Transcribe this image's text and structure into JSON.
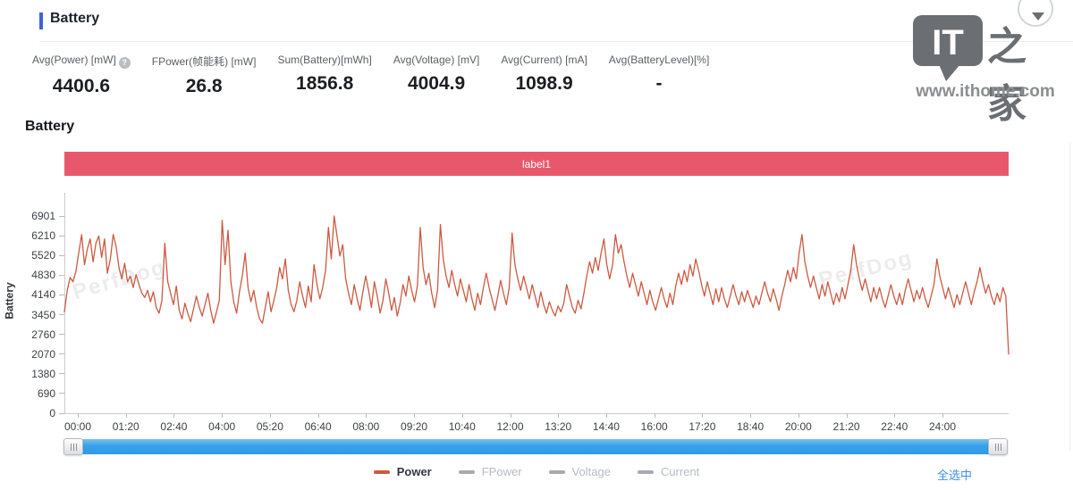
{
  "header": {
    "title": "Battery",
    "accent_color": "#3d63dd"
  },
  "stats": [
    {
      "label": "Avg(Power) [mW]",
      "value": "4400.6",
      "help_icon": true
    },
    {
      "label": "FPower(帧能耗) [mW]",
      "value": "26.8",
      "help_icon": false
    },
    {
      "label": "Sum(Battery)[mWh]",
      "value": "1856.8",
      "help_icon": false
    },
    {
      "label": "Avg(Voltage) [mV]",
      "value": "4004.9",
      "help_icon": false
    },
    {
      "label": "Avg(Current) [mA]",
      "value": "1098.9",
      "help_icon": false
    },
    {
      "label": "Avg(BatteryLevel)[%]",
      "value": "-",
      "help_icon": false
    }
  ],
  "logo": {
    "text_it": "IT",
    "text_zhijia": "之家",
    "url": "www.ithome.com"
  },
  "section": {
    "title": "Battery",
    "banner_label": "label1",
    "banner_color": "#e8586c"
  },
  "watermark": "PerfDog",
  "footer": {
    "select_all": "全选中"
  },
  "chart_data": {
    "type": "line",
    "title": "Battery",
    "xlabel": "",
    "ylabel": "Battery",
    "ylim": [
      0,
      7591
    ],
    "grid": false,
    "x_labels": [
      "00:00",
      "01:20",
      "02:40",
      "04:00",
      "05:20",
      "06:40",
      "08:00",
      "09:20",
      "10:40",
      "12:00",
      "13:20",
      "14:40",
      "16:00",
      "17:20",
      "18:40",
      "20:00",
      "21:20",
      "22:40",
      "24:00"
    ],
    "y_ticks": [
      0,
      690,
      1380,
      2070,
      2760,
      3450,
      4140,
      4830,
      5520,
      6210,
      6901
    ],
    "legend": [
      {
        "label": "Power",
        "active": true,
        "color": "#cc5a40",
        "text_color": "#34383d"
      },
      {
        "label": "FPower",
        "active": false,
        "color": "#a6abb0",
        "text_color": "#b7bbc0"
      },
      {
        "label": "Voltage",
        "active": false,
        "color": "#a6abb0",
        "text_color": "#b7bbc0"
      },
      {
        "label": "Current",
        "active": false,
        "color": "#a6abb0",
        "text_color": "#b7bbc0"
      }
    ],
    "series": [
      {
        "name": "Power",
        "unit": "mW",
        "color": "#cb5a42",
        "values": [
          3550,
          4300,
          4750,
          4600,
          4950,
          5600,
          6250,
          5200,
          5750,
          6100,
          5300,
          5950,
          6200,
          5450,
          6100,
          4900,
          5400,
          6250,
          5850,
          5100,
          4700,
          5250,
          4600,
          4800,
          4400,
          4850,
          4500,
          4200,
          4050,
          4300,
          3900,
          4250,
          3700,
          3500,
          3950,
          5950,
          4600,
          4200,
          3800,
          4450,
          3600,
          3300,
          3850,
          3500,
          3200,
          3650,
          4100,
          3700,
          3400,
          3800,
          4200,
          3600,
          3150,
          3550,
          3950,
          6750,
          5200,
          6400,
          4600,
          3900,
          3500,
          4250,
          4800,
          5600,
          4400,
          3900,
          4300,
          3700,
          3300,
          3150,
          3700,
          4250,
          3550,
          3950,
          4400,
          5100,
          4700,
          5400,
          4300,
          3800,
          3550,
          3950,
          4600,
          4100,
          3700,
          4450,
          3900,
          5200,
          4500,
          4000,
          4400,
          5000,
          6500,
          5400,
          6901,
          6200,
          5500,
          5900,
          4700,
          4200,
          3800,
          4500,
          4000,
          3600,
          4250,
          4800,
          4300,
          3700,
          4600,
          4100,
          3500,
          3950,
          4700,
          4200,
          3600,
          4050,
          3400,
          3850,
          4500,
          4100,
          4800,
          4300,
          3900,
          4450,
          6500,
          5100,
          4500,
          4900,
          4200,
          3700,
          4300,
          6600,
          5400,
          4800,
          4400,
          5000,
          4500,
          4100,
          4700,
          4300,
          3900,
          4500,
          4000,
          3600,
          4200,
          3800,
          4400,
          4900,
          4400,
          4000,
          3600,
          4100,
          4650,
          4200,
          3800,
          4400,
          6300,
          5200,
          4700,
          4300,
          4800,
          4400,
          4000,
          4500,
          4100,
          3700,
          4250,
          3800,
          3500,
          3900,
          3600,
          3400,
          3750,
          3550,
          3850,
          4500,
          4100,
          3700,
          3500,
          3950,
          3650,
          4200,
          4800,
          5300,
          4900,
          5450,
          5000,
          5600,
          6100,
          5200,
          4700,
          5200,
          6250,
          5600,
          5900,
          5300,
          4800,
          4400,
          4900,
          4500,
          4100,
          4600,
          4200,
          3800,
          4300,
          3900,
          3600,
          4000,
          4400,
          4000,
          3700,
          4200,
          3800,
          4450,
          4900,
          4500,
          5000,
          4600,
          5200,
          4800,
          5400,
          5000,
          4500,
          4100,
          4600,
          4200,
          3800,
          4350,
          3900,
          4400,
          4000,
          3700,
          4100,
          4500,
          4100,
          3800,
          4250,
          3900,
          4300,
          4000,
          3700,
          4100,
          3800,
          4200,
          4600,
          4200,
          3900,
          4350,
          4000,
          3600,
          4100,
          4500,
          5000,
          4600,
          5100,
          4700,
          5600,
          6250,
          5300,
          4800,
          4400,
          4800,
          4400,
          4000,
          4500,
          4100,
          4600,
          4200,
          3800,
          4200,
          3900,
          4400,
          4000,
          4500,
          5000,
          5900,
          5200,
          4700,
          4300,
          4700,
          4300,
          3900,
          4400,
          4000,
          4400,
          4000,
          3700,
          4100,
          4500,
          4100,
          3800,
          4200,
          3800,
          4300,
          4700,
          4300,
          3900,
          4300,
          4000,
          4400,
          4000,
          3700,
          4100,
          4500,
          5400,
          4800,
          4400,
          4000,
          4400,
          4050,
          3700,
          4150,
          3800,
          4200,
          4600,
          4200,
          3800,
          4250,
          4600,
          5100,
          4600,
          4200,
          4500,
          4100,
          3800,
          4200,
          3900,
          4400,
          4100,
          2070
        ]
      }
    ]
  }
}
